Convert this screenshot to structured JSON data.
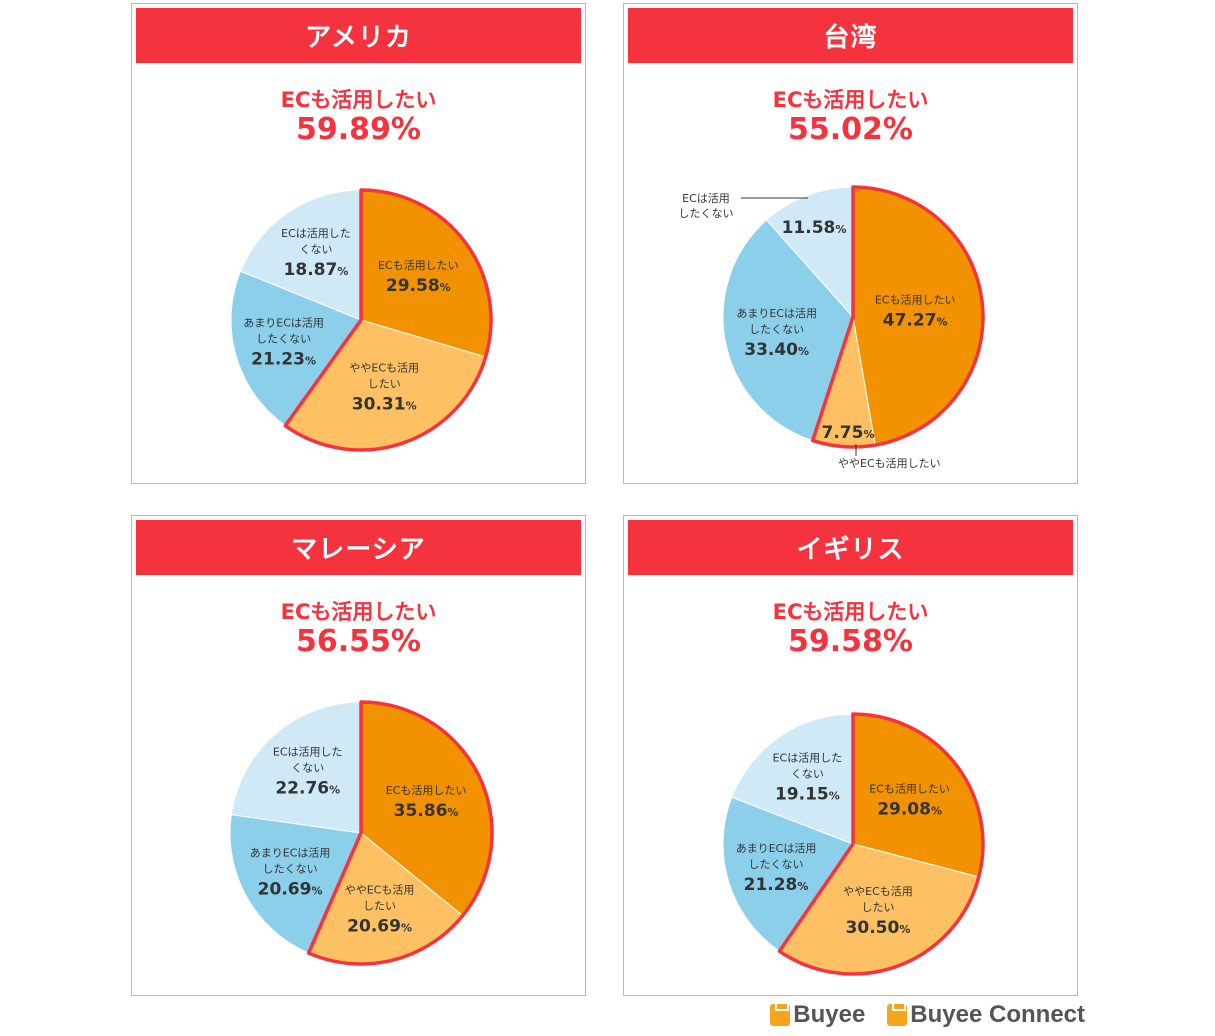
{
  "colors": {
    "accent": "#f5333f",
    "slice_ec_want": "#f39200",
    "slice_somewhat_want": "#fdc163",
    "slice_not_really": "#8ccfea",
    "slice_dont_want": "#cfeaf6"
  },
  "logos": {
    "buyee": "Buyee",
    "buyee_connect": "Buyee Connect"
  },
  "chart_data": [
    {
      "type": "pie",
      "title": "アメリカ",
      "headline_label": "ECも活用したい",
      "headline_value": "59.89%",
      "labels": [
        "ECも活用したい",
        "ややECも活用したい",
        "あまりECは活用したくない",
        "ECは活用したくない"
      ],
      "values": [
        29.58,
        30.31,
        21.23,
        18.87
      ],
      "value_texts": [
        "29.58",
        "30.31",
        "21.23",
        "18.87"
      ],
      "label_lines": [
        [
          "ECも活用したい"
        ],
        [
          "ややECも活用",
          "したい"
        ],
        [
          "あまりECは活用",
          "したくない"
        ],
        [
          "ECは活用した",
          "くない"
        ]
      ],
      "unit": "%"
    },
    {
      "type": "pie",
      "title": "台湾",
      "headline_label": "ECも活用したい",
      "headline_value": "55.02%",
      "labels": [
        "ECも活用したい",
        "ややECも活用したい",
        "あまりECは活用したくない",
        "ECは活用したくない"
      ],
      "values": [
        47.27,
        7.75,
        33.4,
        11.58
      ],
      "value_texts": [
        "47.27",
        "7.75",
        "33.40",
        "11.58"
      ],
      "label_lines": [
        [
          "ECも活用したい"
        ],
        [
          "ややECも活用したい"
        ],
        [
          "あまりECは活用",
          "したくない"
        ],
        [
          "ECは活用",
          "したくない"
        ]
      ],
      "unit": "%"
    },
    {
      "type": "pie",
      "title": "マレーシア",
      "headline_label": "ECも活用したい",
      "headline_value": "56.55%",
      "labels": [
        "ECも活用したい",
        "ややECも活用したい",
        "あまりECは活用したくない",
        "ECは活用したくない"
      ],
      "values": [
        35.86,
        20.69,
        20.69,
        22.76
      ],
      "value_texts": [
        "35.86",
        "20.69",
        "20.69",
        "22.76"
      ],
      "label_lines": [
        [
          "ECも活用したい"
        ],
        [
          "ややECも活用",
          "したい"
        ],
        [
          "あまりECは活用",
          "したくない"
        ],
        [
          "ECは活用した",
          "くない"
        ]
      ],
      "unit": "%"
    },
    {
      "type": "pie",
      "title": "イギリス",
      "headline_label": "ECも活用したい",
      "headline_value": "59.58%",
      "labels": [
        "ECも活用したい",
        "ややECも活用したい",
        "あまりECは活用したくない",
        "ECは活用したくない"
      ],
      "values": [
        29.08,
        30.5,
        21.28,
        19.15
      ],
      "value_texts": [
        "29.08",
        "30.50",
        "21.28",
        "19.15"
      ],
      "label_lines": [
        [
          "ECも活用したい"
        ],
        [
          "ややECも活用",
          "したい"
        ],
        [
          "あまりECは活用",
          "したくない"
        ],
        [
          "ECは活用した",
          "くない"
        ]
      ],
      "unit": "%"
    }
  ]
}
